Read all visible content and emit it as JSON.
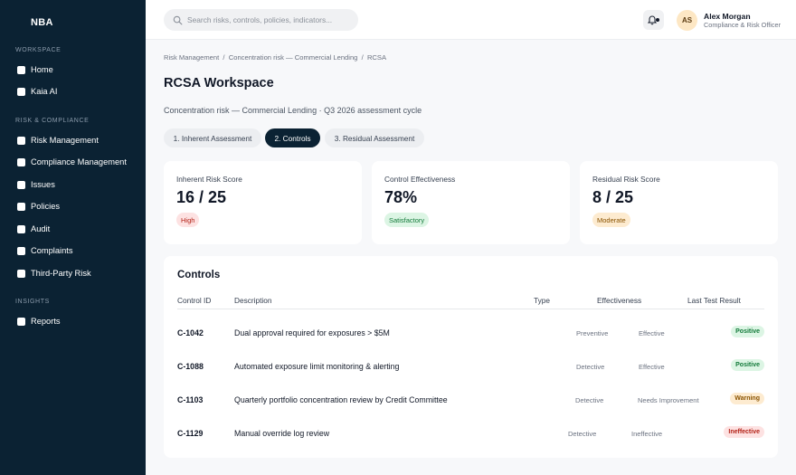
{
  "sidebar": {
    "logo": "NBA",
    "sections": [
      {
        "label": "WORKSPACE",
        "items": [
          {
            "label": "Home"
          },
          {
            "label": "Kaia AI"
          }
        ]
      },
      {
        "label": "RISK & COMPLIANCE",
        "items": [
          {
            "label": "Risk Management"
          },
          {
            "label": "Compliance Management"
          },
          {
            "label": "Issues"
          },
          {
            "label": "Policies"
          },
          {
            "label": "Audit"
          },
          {
            "label": "Complaints"
          },
          {
            "label": "Third-Party Risk"
          }
        ]
      },
      {
        "label": "INSIGHTS",
        "items": [
          {
            "label": "Reports"
          }
        ]
      }
    ]
  },
  "header": {
    "search_placeholder": "Search risks, controls, policies, indicators...",
    "user": {
      "initials": "AS",
      "name": "Alex Morgan",
      "role": "Compliance & Risk Officer"
    },
    "bell_icon": "bell-icon"
  },
  "breadcrumb": "Risk Management  /  Concentration risk — Commercial Lending  /  RCSA",
  "page": {
    "title": "RCSA Workspace",
    "subtitle": "Concentration risk — Commercial Lending · Q3 2026 assessment cycle"
  },
  "tabs": [
    {
      "label": "1. Inherent Assessment",
      "active": false
    },
    {
      "label": "2. Controls",
      "active": true
    },
    {
      "label": "3. Residual Assessment",
      "active": false
    }
  ],
  "cards": [
    {
      "label": "Inherent Risk Score",
      "value": "16 / 25",
      "badge": "High"
    },
    {
      "label": "Control Effectiveness",
      "value": "78%",
      "badge": "Satisfactory"
    },
    {
      "label": "Residual Risk Score",
      "value": "8 / 25",
      "badge": "Moderate"
    }
  ],
  "controls": {
    "title": "Controls",
    "columns": {
      "id": "Control ID",
      "description": "Description",
      "type": "Type",
      "effectiveness": "Effectiveness",
      "result": "Last Test Result"
    },
    "rows": [
      {
        "id": "C-1042",
        "description": "Dual approval required for exposures > $5M",
        "type": "Preventive",
        "effectiveness": "Effective",
        "result": "Positive"
      },
      {
        "id": "C-1088",
        "description": "Automated exposure limit monitoring & alerting",
        "type": "Detective",
        "effectiveness": "Effective",
        "result": "Positive"
      },
      {
        "id": "C-1103",
        "description": "Quarterly portfolio concentration review by Credit Committee",
        "type": "Detective",
        "effectiveness": "Needs Improvement",
        "result": "Warning"
      },
      {
        "id": "C-1129",
        "description": "Manual override log review",
        "type": "Detective",
        "effectiveness": "Ineffective",
        "result": "Ineffective"
      }
    ]
  },
  "colors": {
    "sidebar_bg": "#0b2233",
    "active_tab": "#0b2233",
    "positive": "#137a3a",
    "warning": "#8a5300",
    "negative": "#b42318"
  }
}
